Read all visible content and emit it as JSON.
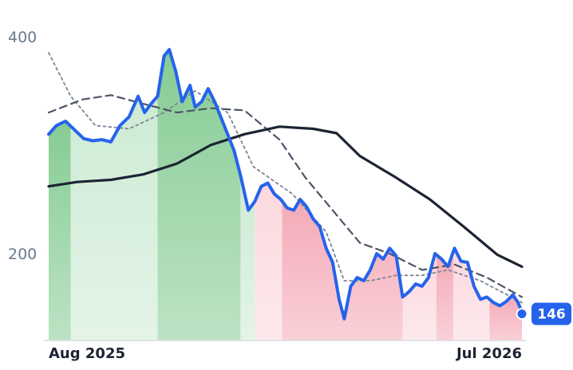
{
  "chart_data": {
    "type": "line",
    "x_start": "2025-07-24",
    "x_end": "2026-07-24",
    "x_ticks": [
      "Aug 2025",
      "Jul 2026"
    ],
    "y_ticks": [
      200,
      400
    ],
    "ylim": [
      120,
      405
    ],
    "grid": false,
    "last_value_label": "146",
    "colors": {
      "price": "#2563eb",
      "ma_long": "#1c2433",
      "ma_mid": "#4b5567",
      "ma_short": "#7a8494",
      "up_strong": "#86cc94",
      "up_light": "#cdebd4",
      "down_strong": "#f4aab7",
      "down_light": "#fbd8de",
      "badge": "#2563eb"
    },
    "series": [
      {
        "key": "price",
        "points": [
          [
            "2025-07-24",
            310
          ],
          [
            "2025-07-30",
            318
          ],
          [
            "2025-08-06",
            322
          ],
          [
            "2025-08-13",
            314
          ],
          [
            "2025-08-20",
            306
          ],
          [
            "2025-08-27",
            304
          ],
          [
            "2025-09-03",
            305
          ],
          [
            "2025-09-10",
            303
          ],
          [
            "2025-09-17",
            318
          ],
          [
            "2025-09-24",
            326
          ],
          [
            "2025-10-01",
            345
          ],
          [
            "2025-10-06",
            330
          ],
          [
            "2025-10-11",
            338
          ],
          [
            "2025-10-16",
            345
          ],
          [
            "2025-10-21",
            382
          ],
          [
            "2025-10-25",
            388
          ],
          [
            "2025-10-30",
            368
          ],
          [
            "2025-11-04",
            340
          ],
          [
            "2025-11-10",
            355
          ],
          [
            "2025-11-14",
            335
          ],
          [
            "2025-11-19",
            340
          ],
          [
            "2025-11-24",
            352
          ],
          [
            "2025-11-29",
            340
          ],
          [
            "2025-12-04",
            325
          ],
          [
            "2025-12-09",
            310
          ],
          [
            "2025-12-14",
            295
          ],
          [
            "2025-12-19",
            272
          ],
          [
            "2025-12-25",
            240
          ],
          [
            "2025-12-30",
            248
          ],
          [
            "2026-01-04",
            262
          ],
          [
            "2026-01-09",
            265
          ],
          [
            "2026-01-14",
            255
          ],
          [
            "2026-01-19",
            250
          ],
          [
            "2026-01-24",
            242
          ],
          [
            "2026-01-29",
            240
          ],
          [
            "2026-02-03",
            250
          ],
          [
            "2026-02-08",
            243
          ],
          [
            "2026-02-13",
            232
          ],
          [
            "2026-02-18",
            225
          ],
          [
            "2026-02-23",
            205
          ],
          [
            "2026-02-28",
            192
          ],
          [
            "2026-03-05",
            158
          ],
          [
            "2026-03-09",
            140
          ],
          [
            "2026-03-14",
            170
          ],
          [
            "2026-03-19",
            178
          ],
          [
            "2026-03-24",
            175
          ],
          [
            "2026-03-29",
            185
          ],
          [
            "2026-04-03",
            200
          ],
          [
            "2026-04-08",
            195
          ],
          [
            "2026-04-13",
            205
          ],
          [
            "2026-04-18",
            198
          ],
          [
            "2026-04-23",
            160
          ],
          [
            "2026-04-28",
            165
          ],
          [
            "2026-05-03",
            172
          ],
          [
            "2026-05-08",
            170
          ],
          [
            "2026-05-13",
            178
          ],
          [
            "2026-05-18",
            200
          ],
          [
            "2026-05-23",
            195
          ],
          [
            "2026-05-28",
            188
          ],
          [
            "2026-06-02",
            205
          ],
          [
            "2026-06-07",
            193
          ],
          [
            "2026-06-12",
            192
          ],
          [
            "2026-06-17",
            170
          ],
          [
            "2026-06-22",
            158
          ],
          [
            "2026-06-27",
            160
          ],
          [
            "2026-07-02",
            155
          ],
          [
            "2026-07-07",
            152
          ],
          [
            "2026-07-12",
            156
          ],
          [
            "2026-07-17",
            162
          ],
          [
            "2026-07-21",
            155
          ],
          [
            "2026-07-24",
            146
          ]
        ]
      },
      {
        "key": "ma_long",
        "points": [
          [
            "2025-07-24",
            262
          ],
          [
            "2025-08-15",
            266
          ],
          [
            "2025-09-10",
            268
          ],
          [
            "2025-10-05",
            273
          ],
          [
            "2025-10-31",
            283
          ],
          [
            "2025-11-26",
            300
          ],
          [
            "2025-12-22",
            310
          ],
          [
            "2026-01-18",
            317
          ],
          [
            "2026-02-13",
            315
          ],
          [
            "2026-03-03",
            311
          ],
          [
            "2026-03-21",
            290
          ],
          [
            "2026-04-18",
            270
          ],
          [
            "2026-05-14",
            250
          ],
          [
            "2026-06-09",
            225
          ],
          [
            "2026-07-05",
            199
          ],
          [
            "2026-07-24",
            188
          ]
        ]
      },
      {
        "key": "ma_mid",
        "points": [
          [
            "2025-07-24",
            330
          ],
          [
            "2025-08-19",
            342
          ],
          [
            "2025-09-10",
            346
          ],
          [
            "2025-10-05",
            338
          ],
          [
            "2025-10-31",
            330
          ],
          [
            "2025-11-26",
            334
          ],
          [
            "2025-12-22",
            332
          ],
          [
            "2026-01-18",
            305
          ],
          [
            "2026-02-07",
            270
          ],
          [
            "2026-02-28",
            240
          ],
          [
            "2026-03-21",
            210
          ],
          [
            "2026-04-13",
            200
          ],
          [
            "2026-05-08",
            185
          ],
          [
            "2026-06-02",
            190
          ],
          [
            "2026-06-27",
            178
          ],
          [
            "2026-07-24",
            160
          ]
        ]
      },
      {
        "key": "ma_short",
        "points": [
          [
            "2025-07-24",
            385
          ],
          [
            "2025-08-10",
            345
          ],
          [
            "2025-08-29",
            318
          ],
          [
            "2025-09-24",
            315
          ],
          [
            "2025-10-21",
            330
          ],
          [
            "2025-11-14",
            350
          ],
          [
            "2025-12-09",
            330
          ],
          [
            "2025-12-29",
            280
          ],
          [
            "2026-01-28",
            255
          ],
          [
            "2026-02-23",
            220
          ],
          [
            "2026-03-09",
            175
          ],
          [
            "2026-03-29",
            175
          ],
          [
            "2026-04-18",
            180
          ],
          [
            "2026-05-08",
            180
          ],
          [
            "2026-05-28",
            185
          ],
          [
            "2026-06-22",
            175
          ],
          [
            "2026-07-24",
            155
          ]
        ]
      }
    ],
    "regions": [
      {
        "start": "2025-07-24",
        "end": "2025-08-10",
        "tone": "up_strong"
      },
      {
        "start": "2025-08-10",
        "end": "2025-10-16",
        "tone": "up_light"
      },
      {
        "start": "2025-10-16",
        "end": "2025-12-19",
        "tone": "up_strong"
      },
      {
        "start": "2025-12-19",
        "end": "2025-12-30",
        "tone": "up_light"
      },
      {
        "start": "2025-12-30",
        "end": "2026-01-20",
        "tone": "down_light"
      },
      {
        "start": "2026-01-20",
        "end": "2026-04-23",
        "tone": "down_strong"
      },
      {
        "start": "2026-04-23",
        "end": "2026-05-19",
        "tone": "down_light"
      },
      {
        "start": "2026-05-19",
        "end": "2026-06-01",
        "tone": "down_strong"
      },
      {
        "start": "2026-06-01",
        "end": "2026-06-29",
        "tone": "down_light"
      },
      {
        "start": "2026-06-29",
        "end": "2026-07-24",
        "tone": "down_strong"
      }
    ]
  }
}
